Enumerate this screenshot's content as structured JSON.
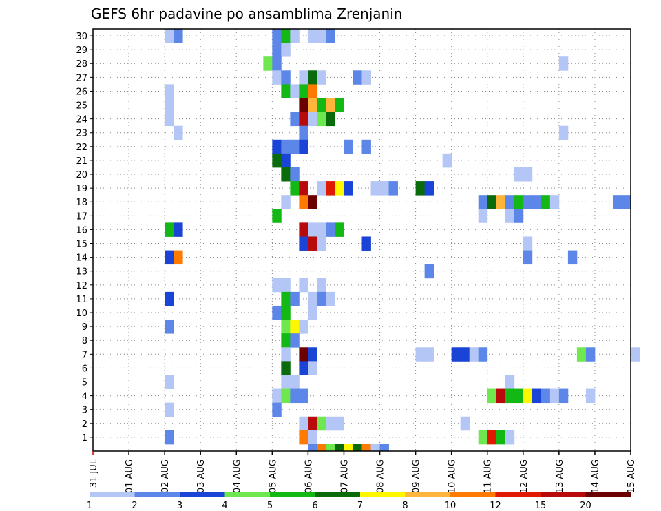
{
  "chart_data": {
    "type": "heatmap",
    "title": "GEFS 6hr padavine po ansamblima Zrenjanin",
    "xlabel": "",
    "ylabel": "",
    "x_tick_labels": [
      "31 JUL",
      "01 AUG",
      "02 AUG",
      "03 AUG",
      "04 AUG",
      "05 AUG",
      "06 AUG",
      "07 AUG",
      "08 AUG",
      "09 AUG",
      "10 AUG",
      "11 AUG",
      "12 AUG",
      "13 AUG",
      "14 AUG",
      "15 AUG"
    ],
    "x_range_days": [
      0,
      15
    ],
    "y_tick_labels": [
      "1",
      "2",
      "3",
      "4",
      "5",
      "6",
      "7",
      "8",
      "9",
      "10",
      "11",
      "12",
      "13",
      "14",
      "15",
      "16",
      "17",
      "18",
      "19",
      "20",
      "21",
      "22",
      "23",
      "24",
      "25",
      "26",
      "27",
      "28",
      "29",
      "30"
    ],
    "y_range": [
      0,
      30
    ],
    "grid": true,
    "legend_position": "bottom",
    "legend_labels": [
      "1",
      "2",
      "3",
      "4",
      "5",
      "6",
      "7",
      "8",
      "10",
      "12",
      "15",
      "20"
    ],
    "legend_colors": [
      "#b3c6f5",
      "#5c87e8",
      "#1a44d6",
      "#6ee84e",
      "#14b814",
      "#0a6b0a",
      "#fff700",
      "#ffb43c",
      "#ff7a00",
      "#e01a00",
      "#b80a0a",
      "#6b0000"
    ],
    "color_levels": {
      "L1": "#b3c6f5",
      "L2": "#5c87e8",
      "L3": "#1a44d6",
      "L4": "#6ee84e",
      "L5": "#14b814",
      "L6": "#0a6b0a",
      "L7": "#fff700",
      "L8": "#ffb43c",
      "L9": "#ff7a00",
      "L10": "#e01a00",
      "L11": "#b80a0a",
      "L12": "#6b0000"
    },
    "cells": [
      {
        "m": 30,
        "t": 8,
        "c": "L1"
      },
      {
        "m": 30,
        "t": 9,
        "c": "L2"
      },
      {
        "m": 30,
        "t": 20,
        "c": "L2"
      },
      {
        "m": 30,
        "t": 21,
        "c": "L5"
      },
      {
        "m": 30,
        "t": 22,
        "c": "L1"
      },
      {
        "m": 30,
        "t": 24,
        "c": "L1"
      },
      {
        "m": 30,
        "t": 25,
        "c": "L1"
      },
      {
        "m": 30,
        "t": 26,
        "c": "L2"
      },
      {
        "m": 29,
        "t": 20,
        "c": "L2"
      },
      {
        "m": 29,
        "t": 21,
        "c": "L1"
      },
      {
        "m": 28,
        "t": 19,
        "c": "L4"
      },
      {
        "m": 28,
        "t": 20,
        "c": "L2"
      },
      {
        "m": 28,
        "t": 52,
        "c": "L1"
      },
      {
        "m": 27,
        "t": 20,
        "c": "L1"
      },
      {
        "m": 27,
        "t": 21,
        "c": "L2"
      },
      {
        "m": 27,
        "t": 23,
        "c": "L1"
      },
      {
        "m": 27,
        "t": 24,
        "c": "L6"
      },
      {
        "m": 27,
        "t": 25,
        "c": "L1"
      },
      {
        "m": 27,
        "t": 29,
        "c": "L2"
      },
      {
        "m": 27,
        "t": 30,
        "c": "L1"
      },
      {
        "m": 26,
        "t": 8,
        "c": "L1"
      },
      {
        "m": 26,
        "t": 21,
        "c": "L5"
      },
      {
        "m": 26,
        "t": 22,
        "c": "L1"
      },
      {
        "m": 26,
        "t": 23,
        "c": "L5"
      },
      {
        "m": 26,
        "t": 24,
        "c": "L9"
      },
      {
        "m": 25,
        "t": 8,
        "c": "L1"
      },
      {
        "m": 25,
        "t": 23,
        "c": "L12"
      },
      {
        "m": 25,
        "t": 24,
        "c": "L8"
      },
      {
        "m": 25,
        "t": 25,
        "c": "L5"
      },
      {
        "m": 25,
        "t": 26,
        "c": "L8"
      },
      {
        "m": 25,
        "t": 27,
        "c": "L5"
      },
      {
        "m": 24,
        "t": 8,
        "c": "L1"
      },
      {
        "m": 24,
        "t": 22,
        "c": "L2"
      },
      {
        "m": 24,
        "t": 23,
        "c": "L11"
      },
      {
        "m": 24,
        "t": 24,
        "c": "L1"
      },
      {
        "m": 24,
        "t": 25,
        "c": "L4"
      },
      {
        "m": 24,
        "t": 26,
        "c": "L6"
      },
      {
        "m": 23,
        "t": 9,
        "c": "L1"
      },
      {
        "m": 23,
        "t": 23,
        "c": "L2"
      },
      {
        "m": 23,
        "t": 52,
        "c": "L1"
      },
      {
        "m": 22,
        "t": 20,
        "c": "L3"
      },
      {
        "m": 22,
        "t": 21,
        "c": "L2"
      },
      {
        "m": 22,
        "t": 22,
        "c": "L2"
      },
      {
        "m": 22,
        "t": 23,
        "c": "L3"
      },
      {
        "m": 22,
        "t": 28,
        "c": "L2"
      },
      {
        "m": 22,
        "t": 30,
        "c": "L2"
      },
      {
        "m": 21,
        "t": 20,
        "c": "L6"
      },
      {
        "m": 21,
        "t": 21,
        "c": "L3"
      },
      {
        "m": 21,
        "t": 39,
        "c": "L1"
      },
      {
        "m": 20,
        "t": 21,
        "c": "L6"
      },
      {
        "m": 20,
        "t": 22,
        "c": "L2"
      },
      {
        "m": 20,
        "t": 47,
        "c": "L1"
      },
      {
        "m": 20,
        "t": 48,
        "c": "L1"
      },
      {
        "m": 19,
        "t": 22,
        "c": "L5"
      },
      {
        "m": 19,
        "t": 23,
        "c": "L11"
      },
      {
        "m": 19,
        "t": 25,
        "c": "L1"
      },
      {
        "m": 19,
        "t": 26,
        "c": "L10"
      },
      {
        "m": 19,
        "t": 27,
        "c": "L7"
      },
      {
        "m": 19,
        "t": 28,
        "c": "L3"
      },
      {
        "m": 19,
        "t": 31,
        "c": "L1"
      },
      {
        "m": 19,
        "t": 32,
        "c": "L1"
      },
      {
        "m": 19,
        "t": 33,
        "c": "L2"
      },
      {
        "m": 19,
        "t": 36,
        "c": "L6"
      },
      {
        "m": 19,
        "t": 37,
        "c": "L3"
      },
      {
        "m": 18,
        "t": 21,
        "c": "L1"
      },
      {
        "m": 18,
        "t": 23,
        "c": "L9"
      },
      {
        "m": 18,
        "t": 24,
        "c": "L12"
      },
      {
        "m": 18,
        "t": 43,
        "c": "L2"
      },
      {
        "m": 18,
        "t": 44,
        "c": "L6"
      },
      {
        "m": 18,
        "t": 45,
        "c": "L8"
      },
      {
        "m": 18,
        "t": 46,
        "c": "L2"
      },
      {
        "m": 18,
        "t": 47,
        "c": "L5"
      },
      {
        "m": 18,
        "t": 48,
        "c": "L2"
      },
      {
        "m": 18,
        "t": 49,
        "c": "L2"
      },
      {
        "m": 18,
        "t": 50,
        "c": "L5"
      },
      {
        "m": 18,
        "t": 51,
        "c": "L1"
      },
      {
        "m": 18,
        "t": 58,
        "c": "L2"
      },
      {
        "m": 18,
        "t": 59,
        "c": "L2"
      },
      {
        "m": 17,
        "t": 20,
        "c": "L5"
      },
      {
        "m": 17,
        "t": 43,
        "c": "L1"
      },
      {
        "m": 17,
        "t": 46,
        "c": "L1"
      },
      {
        "m": 17,
        "t": 47,
        "c": "L2"
      },
      {
        "m": 16,
        "t": 8,
        "c": "L5"
      },
      {
        "m": 16,
        "t": 9,
        "c": "L3"
      },
      {
        "m": 16,
        "t": 23,
        "c": "L11"
      },
      {
        "m": 16,
        "t": 24,
        "c": "L1"
      },
      {
        "m": 16,
        "t": 25,
        "c": "L1"
      },
      {
        "m": 16,
        "t": 26,
        "c": "L2"
      },
      {
        "m": 16,
        "t": 27,
        "c": "L5"
      },
      {
        "m": 15,
        "t": 23,
        "c": "L3"
      },
      {
        "m": 15,
        "t": 24,
        "c": "L11"
      },
      {
        "m": 15,
        "t": 25,
        "c": "L1"
      },
      {
        "m": 15,
        "t": 30,
        "c": "L3"
      },
      {
        "m": 15,
        "t": 48,
        "c": "L1"
      },
      {
        "m": 14,
        "t": 8,
        "c": "L3"
      },
      {
        "m": 14,
        "t": 9,
        "c": "L9"
      },
      {
        "m": 14,
        "t": 48,
        "c": "L2"
      },
      {
        "m": 14,
        "t": 53,
        "c": "L2"
      },
      {
        "m": 13,
        "t": 37,
        "c": "L2"
      },
      {
        "m": 12,
        "t": 20,
        "c": "L1"
      },
      {
        "m": 12,
        "t": 21,
        "c": "L1"
      },
      {
        "m": 12,
        "t": 23,
        "c": "L1"
      },
      {
        "m": 12,
        "t": 25,
        "c": "L1"
      },
      {
        "m": 11,
        "t": 8,
        "c": "L3"
      },
      {
        "m": 11,
        "t": 21,
        "c": "L5"
      },
      {
        "m": 11,
        "t": 22,
        "c": "L2"
      },
      {
        "m": 11,
        "t": 24,
        "c": "L1"
      },
      {
        "m": 11,
        "t": 25,
        "c": "L2"
      },
      {
        "m": 11,
        "t": 26,
        "c": "L1"
      },
      {
        "m": 10,
        "t": 20,
        "c": "L2"
      },
      {
        "m": 10,
        "t": 21,
        "c": "L5"
      },
      {
        "m": 10,
        "t": 24,
        "c": "L1"
      },
      {
        "m": 9,
        "t": 8,
        "c": "L2"
      },
      {
        "m": 9,
        "t": 21,
        "c": "L4"
      },
      {
        "m": 9,
        "t": 22,
        "c": "L7"
      },
      {
        "m": 9,
        "t": 23,
        "c": "L1"
      },
      {
        "m": 8,
        "t": 21,
        "c": "L5"
      },
      {
        "m": 8,
        "t": 22,
        "c": "L2"
      },
      {
        "m": 7,
        "t": 21,
        "c": "L1"
      },
      {
        "m": 7,
        "t": 23,
        "c": "L12"
      },
      {
        "m": 7,
        "t": 24,
        "c": "L3"
      },
      {
        "m": 7,
        "t": 36,
        "c": "L1"
      },
      {
        "m": 7,
        "t": 37,
        "c": "L1"
      },
      {
        "m": 7,
        "t": 40,
        "c": "L3"
      },
      {
        "m": 7,
        "t": 41,
        "c": "L3"
      },
      {
        "m": 7,
        "t": 42,
        "c": "L1"
      },
      {
        "m": 7,
        "t": 43,
        "c": "L2"
      },
      {
        "m": 7,
        "t": 54,
        "c": "L4"
      },
      {
        "m": 7,
        "t": 55,
        "c": "L2"
      },
      {
        "m": 7,
        "t": 60,
        "c": "L1"
      },
      {
        "m": 6,
        "t": 21,
        "c": "L6"
      },
      {
        "m": 6,
        "t": 23,
        "c": "L3"
      },
      {
        "m": 6,
        "t": 24,
        "c": "L1"
      },
      {
        "m": 5,
        "t": 8,
        "c": "L1"
      },
      {
        "m": 5,
        "t": 21,
        "c": "L1"
      },
      {
        "m": 5,
        "t": 22,
        "c": "L1"
      },
      {
        "m": 5,
        "t": 46,
        "c": "L1"
      },
      {
        "m": 4,
        "t": 20,
        "c": "L1"
      },
      {
        "m": 4,
        "t": 21,
        "c": "L4"
      },
      {
        "m": 4,
        "t": 22,
        "c": "L2"
      },
      {
        "m": 4,
        "t": 23,
        "c": "L2"
      },
      {
        "m": 4,
        "t": 44,
        "c": "L4"
      },
      {
        "m": 4,
        "t": 45,
        "c": "L11"
      },
      {
        "m": 4,
        "t": 46,
        "c": "L5"
      },
      {
        "m": 4,
        "t": 47,
        "c": "L5"
      },
      {
        "m": 4,
        "t": 48,
        "c": "L7"
      },
      {
        "m": 4,
        "t": 49,
        "c": "L3"
      },
      {
        "m": 4,
        "t": 50,
        "c": "L2"
      },
      {
        "m": 4,
        "t": 51,
        "c": "L1"
      },
      {
        "m": 4,
        "t": 52,
        "c": "L2"
      },
      {
        "m": 4,
        "t": 55,
        "c": "L1"
      },
      {
        "m": 3,
        "t": 8,
        "c": "L1"
      },
      {
        "m": 3,
        "t": 20,
        "c": "L2"
      },
      {
        "m": 2,
        "t": 23,
        "c": "L1"
      },
      {
        "m": 2,
        "t": 24,
        "c": "L11"
      },
      {
        "m": 2,
        "t": 25,
        "c": "L4"
      },
      {
        "m": 2,
        "t": 26,
        "c": "L1"
      },
      {
        "m": 2,
        "t": 27,
        "c": "L1"
      },
      {
        "m": 2,
        "t": 41,
        "c": "L1"
      },
      {
        "m": 1,
        "t": 8,
        "c": "L2"
      },
      {
        "m": 1,
        "t": 23,
        "c": "L9"
      },
      {
        "m": 1,
        "t": 24,
        "c": "L1"
      },
      {
        "m": 1,
        "t": 43,
        "c": "L4"
      },
      {
        "m": 1,
        "t": 44,
        "c": "L10"
      },
      {
        "m": 1,
        "t": 45,
        "c": "L5"
      },
      {
        "m": 1,
        "t": 46,
        "c": "L1"
      },
      {
        "m": 0.5,
        "t": 24,
        "c": "L2"
      },
      {
        "m": 0.5,
        "t": 25,
        "c": "L9"
      },
      {
        "m": 0.5,
        "t": 26,
        "c": "L4"
      },
      {
        "m": 0.5,
        "t": 27,
        "c": "L6"
      },
      {
        "m": 0.5,
        "t": 28,
        "c": "L7"
      },
      {
        "m": 0.5,
        "t": 29,
        "c": "L6"
      },
      {
        "m": 0.5,
        "t": 30,
        "c": "L9"
      },
      {
        "m": 0.5,
        "t": 31,
        "c": "L1"
      },
      {
        "m": 0.5,
        "t": 32,
        "c": "L2"
      }
    ]
  }
}
